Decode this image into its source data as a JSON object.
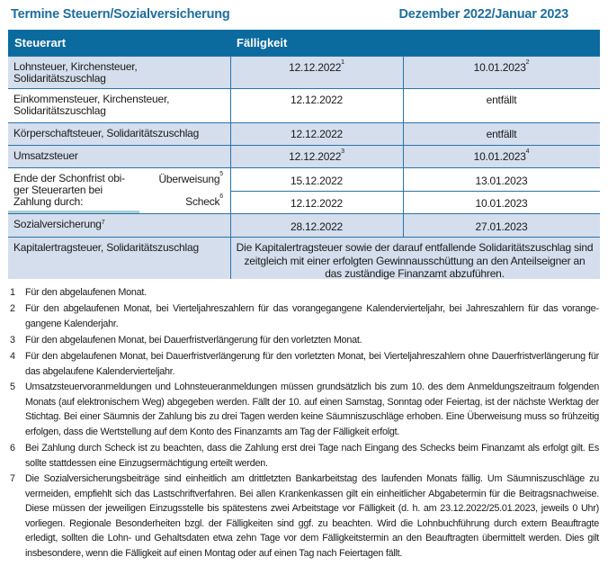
{
  "header": {
    "title": "Termine Steuern/Sozialversicherung",
    "period": "Dezember 2022/Januar 2023"
  },
  "table": {
    "columns": [
      "Steuerart",
      "Fälligkeit"
    ],
    "rows": [
      {
        "label": "Lohnsteuer, Kirchensteuer, Solidaritätszuschlag",
        "dec": "12.12.2022",
        "dec_note": "1",
        "jan": "10.01.2023",
        "jan_note": "2"
      },
      {
        "label": "Einkommensteuer, Kirchensteuer, Solidaritätszuschlag",
        "dec": "12.12.2022",
        "jan": "entfällt"
      },
      {
        "label": "Körperschaftsteuer, Solidaritätszuschlag",
        "dec": "12.12.2022",
        "jan": "entfällt"
      },
      {
        "label": "Umsatzsteuer",
        "dec": "12.12.2022",
        "dec_note": "3",
        "jan": "10.01.2023",
        "jan_note": "4"
      }
    ],
    "schonfrist": {
      "label": "Ende der Schonfrist obi­ger Steuerarten bei Zahlung durch:",
      "ueberweisung": {
        "label": "Überweisung",
        "note": "5",
        "dec": "15.12.2022",
        "jan": "13.01.2023"
      },
      "scheck": {
        "label": "Scheck",
        "note": "6",
        "dec": "12.12.2022",
        "jan": "10.01.2023"
      }
    },
    "sozial": {
      "label": "Sozialversicherung",
      "note": "7",
      "dec": "28.12.2022",
      "jan": "27.01.2023"
    },
    "kapital": {
      "label": "Kapitalertragsteuer, Solidaritätszuschlag",
      "text": "Die Kapitalertragsteuer sowie der darauf entfallende Solidaritätszuschlag sind zeitgleich mit einer erfolgten Gewinnausschüttung an den Anteilseig­ner an das zuständige Finanzamt abzuführen."
    }
  },
  "footnotes": [
    {
      "num": "1",
      "text": "Für den abgelaufenen Monat."
    },
    {
      "num": "2",
      "text": "Für den abgelaufenen Monat, bei Vierteljahreszahlern für das vorangegangene Kalendervierteljahr, bei Jahreszahlern für das vorange­gangene Kalenderjahr."
    },
    {
      "num": "3",
      "text": "Für den abgelaufenen Monat, bei Dauerfristverlängerung für den vorletzten Monat."
    },
    {
      "num": "4",
      "text": "Für den abgelaufenen Monat, bei Dauerfristverlängerung für den vorletzten Monat, bei Vierteljahreszahlern ohne Dauerfristverlängerung für das abgelaufene Kalendervierteljahr."
    },
    {
      "num": "5",
      "text": "Umsatzsteuervoranmeldungen und Lohnsteueranmeldungen müssen grundsätzlich bis zum 10. des dem Anmeldungszeitraum folgen­den Monats (auf elektronischem Weg) abgegeben werden. Fällt der 10. auf einen Samstag, Sonntag oder Feiertag, ist der nächste Werk­tag der Stichtag. Bei einer Säumnis der Zahlung bis zu drei Tagen werden keine Säumniszuschläge erhoben. Eine Überweisung muss so frühzeitig erfolgen, dass die Wertstellung auf dem Konto des Finanzamts am Tag der Fälligkeit erfolgt."
    },
    {
      "num": "6",
      "text": "Bei Zahlung durch Scheck ist zu beachten, dass die Zahlung erst drei Tage nach Eingang des Schecks beim Finanzamt als erfolgt gilt. Es sollte stattdessen eine Einzugsermächtigung erteilt werden."
    },
    {
      "num": "7",
      "text": "Die Sozialversicherungsbeiträge sind einheitlich am drittletzten Bankarbeitstag des laufenden Monats fällig. Um Säumniszuschläge zu vermeiden, empfiehlt sich das Lastschriftverfahren. Bei allen Krankenkassen gilt ein einheitlicher Abgabetermin für die Beitragsnachweise. Diese müssen der jeweiligen Einzugsstelle bis spätestens zwei Arbeitstage vor Fälligkeit (d. h. am 23.12.2022/25.01.2023, jeweils 0 Uhr) vorliegen. Regionale Besonderheiten bzgl. der Fälligkeiten sind ggf. zu beachten. Wird die Lohnbuchführung durch extern Beauftragte erledigt, sollten die Lohn- und Gehaltsdaten etwa zehn Tage vor dem Fälligkeitstermin an den Beauftragten übermittelt werden. Dies gilt insbesondere, wenn die Fälligkeit auf einen Montag oder auf einen Tag nach Feiertagen fällt."
    }
  ],
  "colors": {
    "accent": "#0b6a9e",
    "title": "#1f6e9c",
    "row_blue": "#d4deed",
    "teal_bar": "#a9cdd3"
  }
}
